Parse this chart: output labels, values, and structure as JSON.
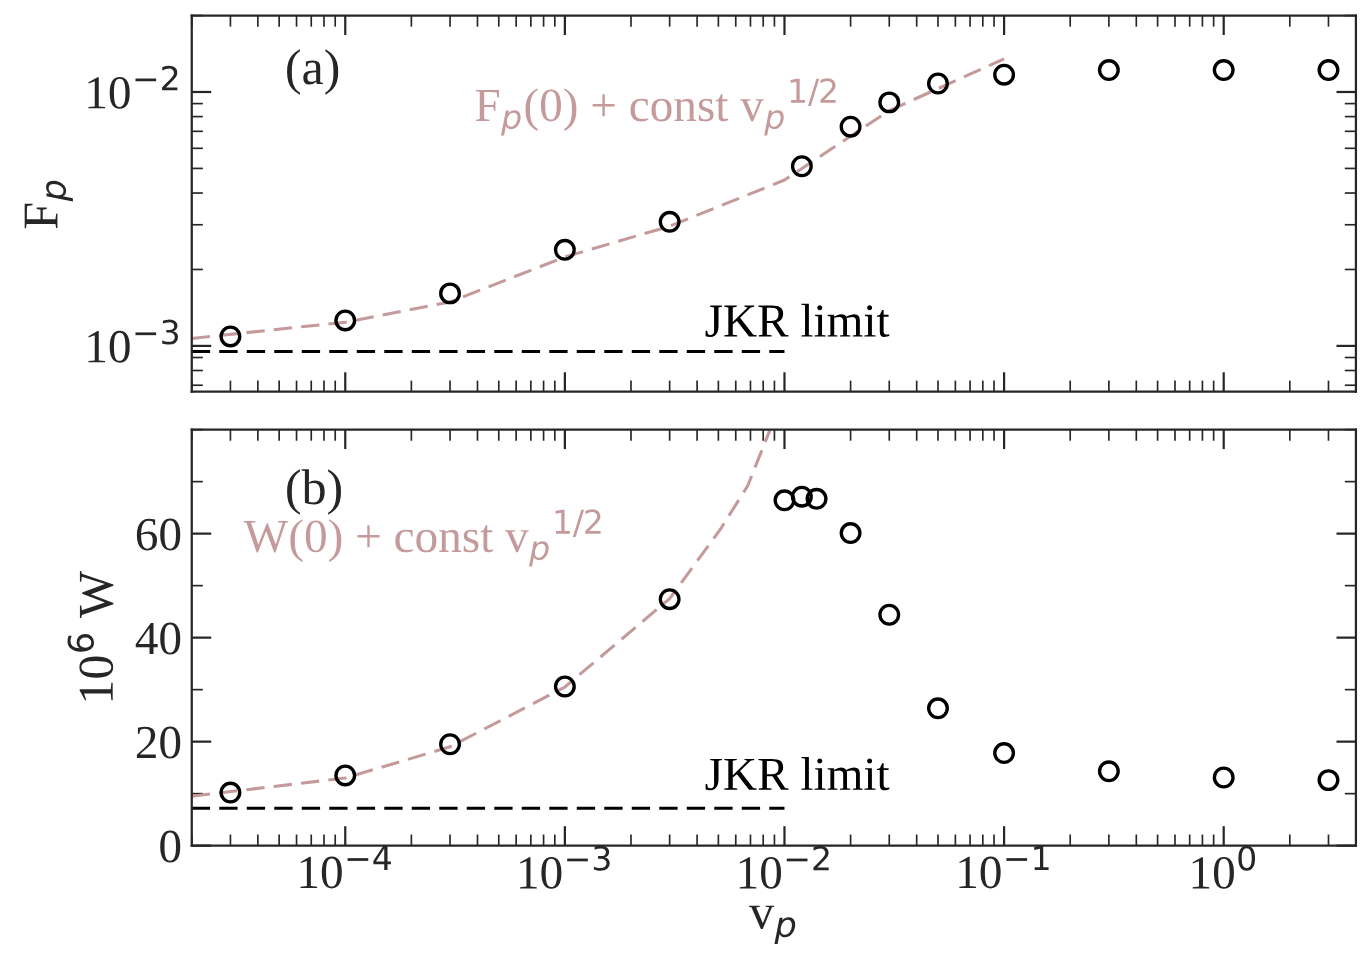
{
  "chart_data": [
    {
      "type": "scatter",
      "ylabel": "F$_{p}$",
      "annotations": [
        "(a)"
      ],
      "log": "xy",
      "legend": false,
      "grid": false,
      "tick_labels": "y",
      "xlim": [
        2e-05,
        4
      ],
      "xticks": [
        {
          "value": 0.0001,
          "label": null
        },
        {
          "value": 0.001,
          "label": null
        },
        {
          "value": 0.01,
          "label": null
        },
        {
          "value": 0.1,
          "label": null
        },
        {
          "value": 1,
          "label": null
        }
      ],
      "ylim": [
        0.00066,
        0.02
      ],
      "yticks": [
        {
          "value": 0.001,
          "label": "10$^{−3}$"
        },
        {
          "value": 0.01,
          "label": "10$^{−2}$"
        }
      ],
      "series": [
        {
          "marker": "circle",
          "color": "#000000",
          "x": [
            3e-05,
            0.0001,
            0.0003,
            0.001,
            0.003,
            0.012,
            0.02,
            0.03,
            0.05,
            0.1,
            0.3,
            1,
            3
          ],
          "values": [
            0.00109,
            0.00126,
            0.00161,
            0.00239,
            0.00308,
            0.0051,
            0.0073,
            0.0091,
            0.0108,
            0.0117,
            0.0122,
            0.0122,
            0.0122
          ]
        },
        {
          "type": "line",
          "line_style": "dashed",
          "color": "#c49a9a",
          "name": "F$_{p}$(0) + const v$_{p}$$^{1/2}$",
          "x": [
            2e-05,
            0.0001,
            0.0003,
            0.001,
            0.003,
            0.01,
            0.03,
            0.1
          ],
          "values": [
            0.00107,
            0.00124,
            0.00149,
            0.00224,
            0.00296,
            0.0045,
            0.00845,
            0.0135
          ]
        },
        {
          "type": "line",
          "line_style": "dashed",
          "color": "#000000",
          "name": "JKR limit",
          "x": [
            2e-05,
            0.01
          ],
          "values": [
            0.00095,
            0.00095
          ]
        }
      ]
    },
    {
      "type": "scatter",
      "xlabel": "v$_{p}$",
      "ylabel": "10$^{6}$ W",
      "annotations": [
        "(b)"
      ],
      "log": "x",
      "legend": false,
      "grid": false,
      "xlim": [
        2e-05,
        4
      ],
      "xticks": [
        {
          "value": 0.0001,
          "label": "10$^{−4}$"
        },
        {
          "value": 0.001,
          "label": "10$^{−3}$"
        },
        {
          "value": 0.01,
          "label": "10$^{−2}$"
        },
        {
          "value": 0.1,
          "label": "10$^{−1}$"
        },
        {
          "value": 1,
          "label": "10$^{0}$"
        }
      ],
      "ylim": [
        0,
        80
      ],
      "yticks": [
        0,
        20,
        40,
        60
      ],
      "series": [
        {
          "marker": "circle",
          "color": "#000000",
          "x": [
            3e-05,
            0.0001,
            0.0003,
            0.001,
            0.003,
            0.01,
            0.012,
            0.014,
            0.02,
            0.03,
            0.05,
            0.1,
            0.3,
            1,
            3
          ],
          "values": [
            10.2,
            13.5,
            19.5,
            30.6,
            47.4,
            66.4,
            67.1,
            66.7,
            60.1,
            44.4,
            26.4,
            17.8,
            14.3,
            13.1,
            12.6
          ]
        },
        {
          "type": "line",
          "line_style": "dashed",
          "color": "#c49a9a",
          "name": "W(0) + const v$_{p}$$^{1/2}$",
          "x": [
            2e-05,
            0.0001,
            0.0003,
            0.001,
            0.003,
            0.0051,
            0.0068,
            0.0086
          ],
          "values": [
            9.5,
            13,
            19,
            30.5,
            47.5,
            60.8,
            69.2,
            80
          ]
        },
        {
          "type": "line",
          "line_style": "dashed",
          "color": "#000000",
          "name": "JKR limit",
          "x": [
            2e-05,
            0.01
          ],
          "values": [
            7.2,
            7.2
          ]
        }
      ]
    }
  ]
}
